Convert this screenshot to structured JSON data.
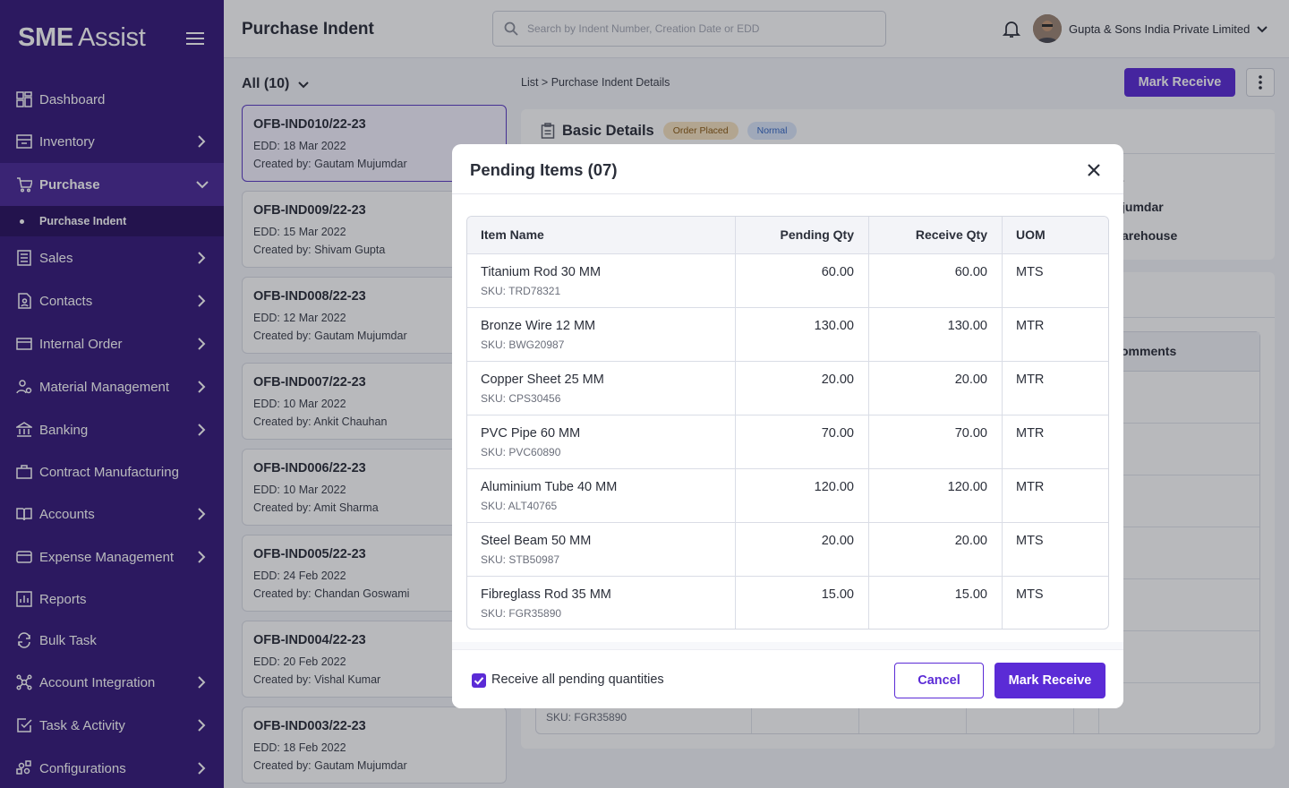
{
  "brand": {
    "bold": "SME",
    "light": "Assist"
  },
  "sidebar": {
    "items": [
      {
        "label": "Dashboard",
        "icon": "dashboard-icon",
        "chevron": false
      },
      {
        "label": "Inventory",
        "icon": "inventory-icon",
        "chevron": true
      },
      {
        "label": "Purchase",
        "icon": "cart-icon",
        "chevron": true,
        "expanded": true
      },
      {
        "label": "Sales",
        "icon": "sales-icon",
        "chevron": true
      },
      {
        "label": "Contacts",
        "icon": "contacts-icon",
        "chevron": true
      },
      {
        "label": "Internal Order",
        "icon": "internal-order-icon",
        "chevron": true
      },
      {
        "label": "Material Management",
        "icon": "material-icon",
        "chevron": true
      },
      {
        "label": "Banking",
        "icon": "bank-icon",
        "chevron": true
      },
      {
        "label": "Contract Manufacturing",
        "icon": "briefcase-icon",
        "chevron": false
      },
      {
        "label": "Accounts",
        "icon": "book-icon",
        "chevron": true
      },
      {
        "label": "Expense Management",
        "icon": "card-icon",
        "chevron": true
      },
      {
        "label": "Reports",
        "icon": "reports-icon",
        "chevron": false
      },
      {
        "label": "Bulk Task",
        "icon": "sync-icon",
        "chevron": false
      },
      {
        "label": "Account Integration",
        "icon": "integration-icon",
        "chevron": true
      },
      {
        "label": "Task & Activity",
        "icon": "task-icon",
        "chevron": true
      },
      {
        "label": "Configurations",
        "icon": "config-icon",
        "chevron": true
      }
    ],
    "sub_item": "Purchase Indent"
  },
  "header": {
    "title": "Purchase Indent",
    "search_placeholder": "Search by Indent Number, Creation Date or EDD",
    "company": "Gupta & Sons India Private Limited"
  },
  "list": {
    "filter_label": "All (10)",
    "cards": [
      {
        "id": "OFB-IND010/22-23",
        "edd": "EDD: 18 Mar 2022",
        "by": "Created by: Gautam Mujumdar",
        "selected": true
      },
      {
        "id": "OFB-IND009/22-23",
        "edd": "EDD: 15 Mar 2022",
        "by": "Created by: Shivam Gupta"
      },
      {
        "id": "OFB-IND008/22-23",
        "edd": "EDD: 12 Mar 2022",
        "by": "Created by: Gautam Mujumdar"
      },
      {
        "id": "OFB-IND007/22-23",
        "edd": "EDD: 10 Mar 2022",
        "by": "Created by: Ankit Chauhan"
      },
      {
        "id": "OFB-IND006/22-23",
        "edd": "EDD: 10 Mar 2022",
        "by": "Created by: Amit Sharma"
      },
      {
        "id": "OFB-IND005/22-23",
        "edd": "EDD: 24 Feb 2022",
        "by": "Created by: Chandan Goswami"
      },
      {
        "id": "OFB-IND004/22-23",
        "edd": "EDD: 20 Feb 2022",
        "by": "Created by: Vishal Kumar"
      },
      {
        "id": "OFB-IND003/22-23",
        "edd": "EDD: 18 Feb 2022",
        "by": "Created by: Gautam Mujumdar"
      }
    ]
  },
  "detail": {
    "breadcrumb": "List  >  Purchase Indent Details",
    "mark_receive": "Mark Receive",
    "basic_title": "Basic Details",
    "badge_status": "Order Placed",
    "badge_priority": "Normal",
    "frag_1": "2",
    "frag_2": "jumdar",
    "frag_3": "arehouse",
    "frag_4": "omments",
    "bg_sku": "SKU: FGR35890"
  },
  "modal": {
    "title": "Pending Items (07)",
    "columns": {
      "name": "Item Name",
      "pending": "Pending Qty",
      "receive": "Receive Qty",
      "uom": "UOM"
    },
    "rows": [
      {
        "name": "Titanium Rod 30 MM",
        "sku": "SKU: TRD78321",
        "pending": "60.00",
        "receive": "60.00",
        "uom": "MTS"
      },
      {
        "name": "Bronze Wire 12 MM",
        "sku": "SKU: BWG20987",
        "pending": "130.00",
        "receive": "130.00",
        "uom": "MTR"
      },
      {
        "name": "Copper Sheet 25 MM",
        "sku": "SKU: CPS30456",
        "pending": "20.00",
        "receive": "20.00",
        "uom": "MTR"
      },
      {
        "name": "PVC Pipe 60 MM",
        "sku": "SKU: PVC60890",
        "pending": "70.00",
        "receive": "70.00",
        "uom": "MTR"
      },
      {
        "name": "Aluminium Tube 40 MM",
        "sku": "SKU: ALT40765",
        "pending": "120.00",
        "receive": "120.00",
        "uom": "MTR"
      },
      {
        "name": "Steel Beam 50 MM",
        "sku": "SKU: STB50987",
        "pending": "20.00",
        "receive": "20.00",
        "uom": "MTS"
      },
      {
        "name": "Fibreglass Rod 35 MM",
        "sku": "SKU: FGR35890",
        "pending": "15.00",
        "receive": "15.00",
        "uom": "MTS"
      }
    ],
    "checkbox_label": "Receive all pending quantities",
    "checkbox_checked": true,
    "cancel": "Cancel",
    "submit": "Mark Receive"
  },
  "colors": {
    "sidebar": "#371b7c",
    "accent": "#5b2bd6",
    "order_badge": "#f7e2c1",
    "normal_badge": "#dbe7fb"
  }
}
